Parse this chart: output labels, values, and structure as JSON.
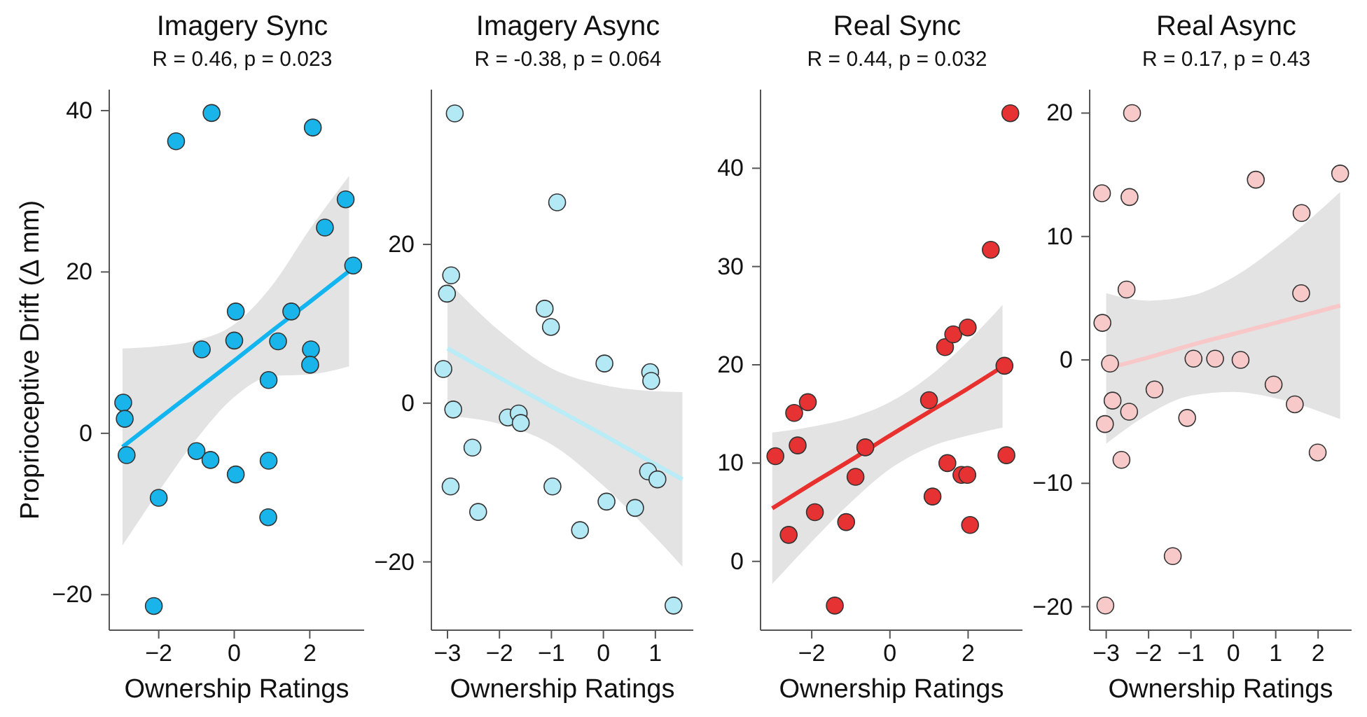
{
  "chart_data": [
    {
      "type": "scatter",
      "title": "Imagery Sync",
      "subtitle": "R = 0.46, p = 0.023",
      "xlabel": "Ownership Ratings",
      "ylabel": "Proprioceptive Drift (Δ mm)",
      "marker": "circle",
      "xlim": [
        -3.31,
        3.44
      ],
      "xticks": [
        -2,
        0,
        2
      ],
      "ylim": [
        -24.4,
        42.6
      ],
      "yticks": [
        -20,
        0,
        20,
        40
      ],
      "series": [
        {
          "type": "scatter",
          "color": "#19b5ea",
          "x": [
            -2.94,
            -2.9,
            -2.85,
            -2.13,
            -2.0,
            -1.54,
            -1.0,
            -0.86,
            -0.63,
            -0.6,
            0.04,
            0.04,
            0.0,
            0.91,
            0.91,
            0.9,
            1.16,
            1.51,
            2.03,
            2.01,
            2.08,
            2.4,
            2.95,
            3.15
          ],
          "values": [
            3.8,
            1.8,
            -2.7,
            -21.4,
            -8.0,
            36.2,
            -2.2,
            10.4,
            -3.3,
            39.7,
            -5.1,
            15.1,
            11.5,
            6.6,
            -3.4,
            -10.4,
            11.4,
            15.1,
            10.4,
            8.5,
            37.9,
            25.5,
            29.0,
            20.8
          ]
        },
        {
          "type": "line",
          "color": "#12b5f0",
          "x": [
            -2.96,
            -2,
            -1,
            0,
            1,
            2,
            3.04
          ],
          "marker": "none",
          "values": [
            -1.7,
            1.8,
            5.4,
            9.0,
            12.7,
            16.3,
            20.1
          ],
          "lower": [
            -13.9,
            -7.2,
            -0.7,
            4.5,
            7.1,
            7.3,
            8.3
          ],
          "upper": [
            10.5,
            10.8,
            11.5,
            13.5,
            18.3,
            25.3,
            31.9
          ]
        }
      ]
    },
    {
      "type": "scatter",
      "title": "Imagery Async",
      "subtitle": "R = -0.38, p = 0.064",
      "xlabel": "Ownership Ratings",
      "marker": "circle",
      "xlim": [
        -3.31,
        1.73
      ],
      "xticks": [
        -3,
        -2,
        -1,
        0,
        1
      ],
      "ylim": [
        -28.6,
        39.5
      ],
      "yticks": [
        -20,
        0,
        20
      ],
      "series": [
        {
          "type": "scatter",
          "color": "#b3e8f5",
          "x": [
            -2.86,
            -2.93,
            -3.01,
            -3.08,
            -2.89,
            -2.94,
            -2.52,
            -2.41,
            -1.84,
            -1.63,
            -1.59,
            -1.13,
            -1.01,
            -0.89,
            -0.98,
            -0.45,
            0.02,
            0.06,
            0.61,
            0.9,
            0.92,
            0.86,
            1.04,
            1.35
          ],
          "values": [
            36.5,
            16.1,
            13.8,
            4.3,
            -0.8,
            -10.5,
            -5.6,
            -13.7,
            -1.8,
            -1.3,
            -2.5,
            11.9,
            9.6,
            25.3,
            -10.5,
            -16.0,
            5.0,
            -12.4,
            -13.2,
            3.9,
            2.8,
            -8.6,
            -9.6,
            -25.5
          ]
        },
        {
          "type": "line",
          "color": "#b8ecf7",
          "x": [
            -3,
            -2,
            -1,
            0,
            1,
            1.52
          ],
          "marker": "none",
          "values": [
            6.9,
            3.2,
            -0.4,
            -4.0,
            -7.7,
            -9.6
          ],
          "lower": [
            -1.6,
            -2.6,
            -5.2,
            -10.4,
            -16.9,
            -20.6
          ],
          "upper": [
            15.4,
            9.1,
            4.4,
            2.3,
            1.5,
            1.4
          ]
        }
      ]
    },
    {
      "type": "scatter",
      "title": "Real Sync",
      "subtitle": "R = 0.44, p = 0.032",
      "xlabel": "Ownership Ratings",
      "marker": "circle",
      "xlim": [
        -3.31,
        3.39
      ],
      "xticks": [
        -2,
        0,
        2
      ],
      "ylim": [
        -7,
        48
      ],
      "yticks": [
        0,
        10,
        20,
        30,
        40
      ],
      "series": [
        {
          "type": "scatter",
          "color": "#e63232",
          "x": [
            -2.93,
            -2.59,
            -2.45,
            -2.36,
            -2.1,
            -1.92,
            -1.41,
            -1.12,
            -0.88,
            -0.63,
            1.0,
            1.09,
            1.41,
            1.47,
            1.62,
            1.83,
            1.98,
            1.99,
            2.05,
            2.58,
            2.93,
            2.98,
            3.08
          ],
          "values": [
            10.7,
            2.7,
            15.1,
            11.8,
            16.2,
            5.0,
            -4.5,
            4.0,
            8.6,
            11.6,
            16.4,
            6.6,
            21.8,
            10.0,
            23.1,
            8.8,
            8.8,
            23.8,
            3.7,
            31.7,
            19.9,
            10.8,
            45.6
          ]
        },
        {
          "type": "line",
          "color": "#e8302e",
          "x": [
            -3.01,
            -2,
            -1,
            0,
            1,
            2,
            2.88
          ],
          "marker": "none",
          "values": [
            5.4,
            7.9,
            10.3,
            12.8,
            15.2,
            17.6,
            19.8
          ],
          "lower": [
            -2.3,
            2.0,
            6.0,
            9.4,
            11.6,
            12.8,
            13.6
          ],
          "upper": [
            13.1,
            13.7,
            14.6,
            16.2,
            18.8,
            22.4,
            26.1
          ]
        }
      ]
    },
    {
      "type": "scatter",
      "title": "Real Async",
      "subtitle": "R = 0.17, p = 0.43",
      "xlabel": "Ownership Ratings",
      "marker": "circle",
      "xlim": [
        -3.39,
        2.79
      ],
      "xticks": [
        -3,
        -2,
        -1,
        0,
        1,
        2
      ],
      "ylim": [
        -21.9,
        21.9
      ],
      "yticks": [
        -20,
        -10,
        0,
        10,
        20
      ],
      "series": [
        {
          "type": "scatter",
          "color": "#f7c9c9",
          "x": [
            -3.1,
            -3.09,
            -2.91,
            -3.03,
            -3.02,
            -2.85,
            -2.64,
            -2.52,
            -2.46,
            -2.45,
            -2.39,
            -1.86,
            -1.43,
            -1.09,
            -0.94,
            -0.43,
            0.17,
            0.53,
            0.95,
            1.45,
            1.61,
            1.6,
            1.99,
            2.52
          ],
          "values": [
            13.5,
            3.0,
            -0.3,
            -5.2,
            -19.9,
            -3.3,
            -8.1,
            5.7,
            -4.2,
            13.2,
            20.0,
            -2.4,
            -15.9,
            -4.7,
            0.1,
            0.1,
            0.0,
            14.6,
            -2.0,
            -3.6,
            11.9,
            5.4,
            -7.5,
            15.1
          ]
        },
        {
          "type": "line",
          "color": "#f8c8c8",
          "x": [
            -3,
            -2,
            -1,
            0,
            1,
            2.52
          ],
          "marker": "none",
          "values": [
            -0.7,
            0.2,
            1.2,
            2.1,
            3.0,
            4.4
          ],
          "lower": [
            -6.8,
            -4.4,
            -2.9,
            -2.6,
            -3.1,
            -4.8
          ],
          "upper": [
            5.4,
            4.8,
            5.2,
            6.7,
            9.1,
            13.6
          ]
        }
      ]
    }
  ]
}
